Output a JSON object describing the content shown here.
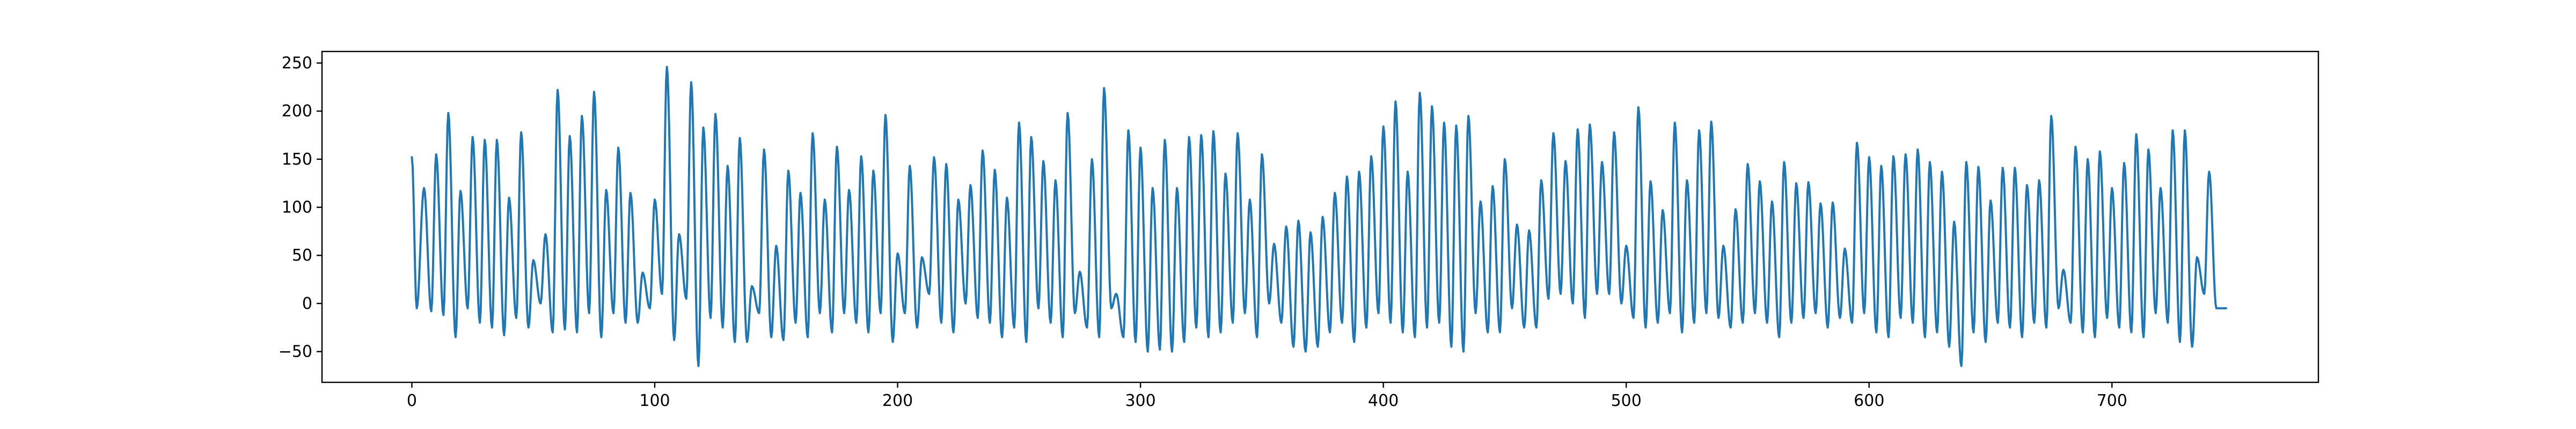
{
  "chart_data": {
    "type": "line",
    "title": "",
    "xlabel": "",
    "ylabel": "",
    "xlim": [
      -37,
      785
    ],
    "ylim": [
      -82,
      262
    ],
    "x_ticks": [
      0,
      100,
      200,
      300,
      400,
      500,
      600,
      700
    ],
    "y_ticks": [
      -50,
      0,
      50,
      100,
      150,
      200,
      250
    ],
    "grid": false,
    "legend": "none",
    "series": [
      {
        "color": "#1f77b4",
        "x_start": 0,
        "x_step": 1,
        "peaks": [
          [
            0,
            152
          ],
          [
            5,
            120
          ],
          [
            10,
            155
          ],
          [
            15,
            198
          ],
          [
            20,
            117
          ],
          [
            25,
            173
          ],
          [
            30,
            170
          ],
          [
            35,
            170
          ],
          [
            40,
            110
          ],
          [
            45,
            178
          ],
          [
            50,
            45
          ],
          [
            55,
            72
          ],
          [
            60,
            222
          ],
          [
            65,
            174
          ],
          [
            70,
            195
          ],
          [
            75,
            220
          ],
          [
            80,
            118
          ],
          [
            85,
            162
          ],
          [
            90,
            115
          ],
          [
            95,
            32
          ],
          [
            100,
            108
          ],
          [
            105,
            246
          ],
          [
            110,
            72
          ],
          [
            115,
            230
          ],
          [
            120,
            183
          ],
          [
            125,
            197
          ],
          [
            130,
            143
          ],
          [
            135,
            172
          ],
          [
            140,
            18
          ],
          [
            145,
            160
          ],
          [
            150,
            60
          ],
          [
            155,
            138
          ],
          [
            160,
            115
          ],
          [
            165,
            177
          ],
          [
            170,
            108
          ],
          [
            175,
            163
          ],
          [
            180,
            118
          ],
          [
            185,
            153
          ],
          [
            190,
            138
          ],
          [
            195,
            196
          ],
          [
            200,
            52
          ],
          [
            205,
            143
          ],
          [
            210,
            48
          ],
          [
            215,
            152
          ],
          [
            220,
            145
          ],
          [
            225,
            108
          ],
          [
            230,
            123
          ],
          [
            235,
            159
          ],
          [
            240,
            139
          ],
          [
            245,
            110
          ],
          [
            250,
            188
          ],
          [
            255,
            173
          ],
          [
            260,
            148
          ],
          [
            265,
            128
          ],
          [
            270,
            198
          ],
          [
            275,
            33
          ],
          [
            280,
            150
          ],
          [
            285,
            224
          ],
          [
            290,
            10
          ],
          [
            295,
            180
          ],
          [
            300,
            162
          ],
          [
            305,
            120
          ],
          [
            310,
            170
          ],
          [
            315,
            120
          ],
          [
            320,
            173
          ],
          [
            325,
            175
          ],
          [
            330,
            179
          ],
          [
            335,
            135
          ],
          [
            340,
            177
          ],
          [
            345,
            108
          ],
          [
            350,
            155
          ],
          [
            355,
            62
          ],
          [
            360,
            80
          ],
          [
            365,
            86
          ],
          [
            370,
            74
          ],
          [
            375,
            90
          ],
          [
            380,
            115
          ],
          [
            385,
            132
          ],
          [
            390,
            137
          ],
          [
            395,
            153
          ],
          [
            400,
            184
          ],
          [
            405,
            210
          ],
          [
            410,
            137
          ],
          [
            415,
            219
          ],
          [
            420,
            205
          ],
          [
            425,
            188
          ],
          [
            430,
            185
          ],
          [
            435,
            195
          ],
          [
            440,
            106
          ],
          [
            445,
            122
          ],
          [
            450,
            150
          ],
          [
            455,
            82
          ],
          [
            460,
            76
          ],
          [
            465,
            128
          ],
          [
            470,
            177
          ],
          [
            475,
            148
          ],
          [
            480,
            181
          ],
          [
            485,
            186
          ],
          [
            490,
            147
          ],
          [
            495,
            178
          ],
          [
            500,
            60
          ],
          [
            505,
            204
          ],
          [
            510,
            127
          ],
          [
            515,
            97
          ],
          [
            520,
            188
          ],
          [
            525,
            128
          ],
          [
            530,
            180
          ],
          [
            535,
            189
          ],
          [
            540,
            60
          ],
          [
            545,
            98
          ],
          [
            550,
            145
          ],
          [
            555,
            127
          ],
          [
            560,
            106
          ],
          [
            565,
            147
          ],
          [
            570,
            125
          ],
          [
            575,
            126
          ],
          [
            580,
            104
          ],
          [
            585,
            105
          ],
          [
            590,
            57
          ],
          [
            595,
            167
          ],
          [
            600,
            152
          ],
          [
            605,
            143
          ],
          [
            610,
            153
          ],
          [
            615,
            155
          ],
          [
            620,
            160
          ],
          [
            625,
            147
          ],
          [
            630,
            137
          ],
          [
            635,
            85
          ],
          [
            640,
            147
          ],
          [
            645,
            142
          ],
          [
            650,
            107
          ],
          [
            655,
            141
          ],
          [
            660,
            141
          ],
          [
            665,
            123
          ],
          [
            670,
            128
          ],
          [
            675,
            195
          ],
          [
            680,
            35
          ],
          [
            685,
            163
          ],
          [
            690,
            150
          ],
          [
            695,
            158
          ],
          [
            700,
            120
          ],
          [
            705,
            146
          ],
          [
            710,
            176
          ],
          [
            715,
            160
          ],
          [
            720,
            120
          ],
          [
            725,
            180
          ],
          [
            730,
            180
          ],
          [
            735,
            48
          ],
          [
            740,
            137
          ],
          [
            747,
            -5
          ]
        ],
        "troughs": [
          [
            2,
            -5
          ],
          [
            8,
            -8
          ],
          [
            13,
            -12
          ],
          [
            18,
            -35
          ],
          [
            23,
            -5
          ],
          [
            28,
            -20
          ],
          [
            33,
            -25
          ],
          [
            38,
            -33
          ],
          [
            43,
            -15
          ],
          [
            48,
            -25
          ],
          [
            53,
            0
          ],
          [
            58,
            -30
          ],
          [
            63,
            -27
          ],
          [
            68,
            -30
          ],
          [
            73,
            -10
          ],
          [
            78,
            -35
          ],
          [
            83,
            -10
          ],
          [
            88,
            -20
          ],
          [
            93,
            -20
          ],
          [
            98,
            -5
          ],
          [
            103,
            10
          ],
          [
            108,
            -38
          ],
          [
            113,
            5
          ],
          [
            118,
            -65
          ],
          [
            123,
            -15
          ],
          [
            128,
            -25
          ],
          [
            133,
            -40
          ],
          [
            138,
            -40
          ],
          [
            143,
            -10
          ],
          [
            148,
            -35
          ],
          [
            153,
            -38
          ],
          [
            158,
            -20
          ],
          [
            163,
            -35
          ],
          [
            168,
            -10
          ],
          [
            173,
            -30
          ],
          [
            178,
            -10
          ],
          [
            183,
            -20
          ],
          [
            188,
            -30
          ],
          [
            193,
            -10
          ],
          [
            198,
            -40
          ],
          [
            203,
            -10
          ],
          [
            208,
            -25
          ],
          [
            213,
            10
          ],
          [
            218,
            -20
          ],
          [
            223,
            -30
          ],
          [
            228,
            0
          ],
          [
            233,
            -15
          ],
          [
            238,
            -20
          ],
          [
            243,
            -35
          ],
          [
            248,
            -25
          ],
          [
            253,
            -40
          ],
          [
            258,
            -5
          ],
          [
            263,
            -20
          ],
          [
            268,
            -35
          ],
          [
            273,
            -10
          ],
          [
            278,
            -25
          ],
          [
            283,
            -35
          ],
          [
            288,
            -5
          ],
          [
            293,
            -35
          ],
          [
            298,
            -40
          ],
          [
            303,
            -50
          ],
          [
            308,
            -48
          ],
          [
            313,
            -50
          ],
          [
            318,
            -40
          ],
          [
            323,
            -25
          ],
          [
            328,
            -35
          ],
          [
            333,
            -30
          ],
          [
            338,
            -20
          ],
          [
            343,
            -10
          ],
          [
            348,
            -35
          ],
          [
            353,
            0
          ],
          [
            358,
            -20
          ],
          [
            363,
            -45
          ],
          [
            368,
            -50
          ],
          [
            373,
            -45
          ],
          [
            378,
            -30
          ],
          [
            383,
            -20
          ],
          [
            388,
            -40
          ],
          [
            393,
            -25
          ],
          [
            398,
            -10
          ],
          [
            403,
            -20
          ],
          [
            408,
            -30
          ],
          [
            413,
            -35
          ],
          [
            418,
            -25
          ],
          [
            423,
            -20
          ],
          [
            428,
            -45
          ],
          [
            433,
            -50
          ],
          [
            438,
            -10
          ],
          [
            443,
            -30
          ],
          [
            448,
            -30
          ],
          [
            453,
            -5
          ],
          [
            458,
            -25
          ],
          [
            463,
            -25
          ],
          [
            468,
            5
          ],
          [
            473,
            10
          ],
          [
            478,
            0
          ],
          [
            483,
            -15
          ],
          [
            488,
            10
          ],
          [
            493,
            10
          ],
          [
            498,
            0
          ],
          [
            503,
            -15
          ],
          [
            508,
            -25
          ],
          [
            513,
            -20
          ],
          [
            518,
            -10
          ],
          [
            523,
            -30
          ],
          [
            528,
            -20
          ],
          [
            533,
            -10
          ],
          [
            538,
            -15
          ],
          [
            543,
            -25
          ],
          [
            548,
            -20
          ],
          [
            553,
            -10
          ],
          [
            558,
            -20
          ],
          [
            563,
            -35
          ],
          [
            568,
            -20
          ],
          [
            573,
            -15
          ],
          [
            578,
            -10
          ],
          [
            583,
            -25
          ],
          [
            588,
            -15
          ],
          [
            593,
            -20
          ],
          [
            598,
            -10
          ],
          [
            603,
            -30
          ],
          [
            608,
            -35
          ],
          [
            613,
            -15
          ],
          [
            618,
            -20
          ],
          [
            623,
            -35
          ],
          [
            628,
            -30
          ],
          [
            633,
            -45
          ],
          [
            638,
            -65
          ],
          [
            643,
            -30
          ],
          [
            648,
            -40
          ],
          [
            653,
            -20
          ],
          [
            658,
            -25
          ],
          [
            663,
            -35
          ],
          [
            668,
            -20
          ],
          [
            673,
            -25
          ],
          [
            678,
            -5
          ],
          [
            683,
            -20
          ],
          [
            688,
            -30
          ],
          [
            693,
            -35
          ],
          [
            698,
            -15
          ],
          [
            703,
            -25
          ],
          [
            708,
            -30
          ],
          [
            713,
            -35
          ],
          [
            718,
            -10
          ],
          [
            723,
            -20
          ],
          [
            728,
            -40
          ],
          [
            733,
            -45
          ],
          [
            738,
            10
          ],
          [
            743,
            -5
          ]
        ]
      }
    ]
  }
}
